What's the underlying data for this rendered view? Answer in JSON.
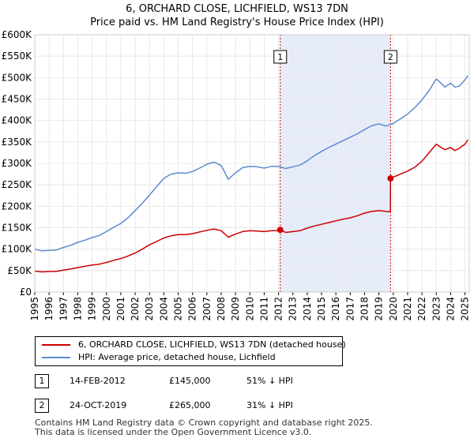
{
  "title_line1": "6, ORCHARD CLOSE, LICHFIELD, WS13 7DN",
  "title_line2": "Price paid vs. HM Land Registry's House Price Index (HPI)",
  "colors": {
    "property_line": "#cc0000",
    "hpi_line": "#5b8bd0",
    "shade": "#e6ecfa",
    "marker_line": "#cc0000",
    "grid": "#e8e8e8"
  },
  "chart_data": {
    "type": "line",
    "xlim": [
      1995,
      2025.3
    ],
    "ylim": [
      0,
      600000
    ],
    "x_ticks": [
      "1995",
      "1996",
      "1997",
      "1998",
      "1999",
      "2000",
      "2001",
      "2002",
      "2003",
      "2004",
      "2005",
      "2006",
      "2007",
      "2008",
      "2009",
      "2010",
      "2011",
      "2012",
      "2013",
      "2014",
      "2015",
      "2016",
      "2017",
      "2018",
      "2019",
      "2020",
      "2021",
      "2022",
      "2023",
      "2024",
      "2025"
    ],
    "y_ticks": [
      {
        "value": 0,
        "label": "£0"
      },
      {
        "value": 50000,
        "label": "£50K"
      },
      {
        "value": 100000,
        "label": "£100K"
      },
      {
        "value": 150000,
        "label": "£150K"
      },
      {
        "value": 200000,
        "label": "£200K"
      },
      {
        "value": 250000,
        "label": "£250K"
      },
      {
        "value": 300000,
        "label": "£300K"
      },
      {
        "value": 350000,
        "label": "£350K"
      },
      {
        "value": 400000,
        "label": "£400K"
      },
      {
        "value": 450000,
        "label": "£450K"
      },
      {
        "value": 500000,
        "label": "£500K"
      },
      {
        "value": 550000,
        "label": "£550K"
      },
      {
        "value": 600000,
        "label": "£600K"
      }
    ],
    "shaded_range": [
      2012.12,
      2019.81
    ],
    "markers": [
      {
        "label": "1",
        "x": 2012.12,
        "value": 145000
      },
      {
        "label": "2",
        "x": 2019.81,
        "value": 265000
      }
    ],
    "series": [
      {
        "name": "6, ORCHARD CLOSE, LICHFIELD, WS13 7DN (detached house)",
        "color": "#cc0000",
        "x": [
          1995.0,
          1995.5,
          1996.0,
          1996.5,
          1997.0,
          1997.5,
          1998.0,
          1998.5,
          1999.0,
          1999.5,
          2000.0,
          2000.5,
          2001.0,
          2001.5,
          2002.0,
          2002.5,
          2003.0,
          2003.5,
          2004.0,
          2004.5,
          2005.0,
          2005.5,
          2006.0,
          2006.5,
          2007.0,
          2007.5,
          2008.0,
          2008.5,
          2009.0,
          2009.5,
          2010.0,
          2010.5,
          2011.0,
          2011.5,
          2012.0,
          2012.12,
          2012.5,
          2013.0,
          2013.5,
          2014.0,
          2014.5,
          2015.0,
          2015.5,
          2016.0,
          2016.5,
          2017.0,
          2017.5,
          2018.0,
          2018.5,
          2019.0,
          2019.5,
          2019.8,
          2019.81,
          2020.0,
          2020.5,
          2021.0,
          2021.5,
          2022.0,
          2022.5,
          2023.0,
          2023.3,
          2023.6,
          2024.0,
          2024.3,
          2024.6,
          2025.0,
          2025.2
        ],
        "values": [
          49000,
          47000,
          48000,
          48000,
          51000,
          54000,
          57000,
          60000,
          63000,
          65000,
          69000,
          74000,
          78000,
          84000,
          91000,
          100000,
          110000,
          118000,
          126000,
          131000,
          134000,
          134000,
          136000,
          140000,
          144000,
          147000,
          143000,
          128000,
          135000,
          141000,
          143000,
          142000,
          141000,
          143000,
          143000,
          145000,
          139000,
          141000,
          143000,
          149000,
          154000,
          158000,
          162000,
          166000,
          170000,
          173000,
          178000,
          184000,
          188000,
          190000,
          188000,
          187000,
          265000,
          268000,
          275000,
          282000,
          291000,
          305000,
          325000,
          345000,
          338000,
          332000,
          337000,
          330000,
          335000,
          345000,
          355000
        ]
      },
      {
        "name": "HPI: Average price, detached house, Lichfield",
        "color": "#5b8bd0",
        "x": [
          1995.0,
          1995.5,
          1996.0,
          1996.5,
          1997.0,
          1997.5,
          1998.0,
          1998.5,
          1999.0,
          1999.5,
          2000.0,
          2000.5,
          2001.0,
          2001.5,
          2002.0,
          2002.5,
          2003.0,
          2003.5,
          2004.0,
          2004.5,
          2005.0,
          2005.5,
          2006.0,
          2006.5,
          2007.0,
          2007.5,
          2008.0,
          2008.5,
          2009.0,
          2009.5,
          2010.0,
          2010.5,
          2011.0,
          2011.5,
          2012.0,
          2012.5,
          2013.0,
          2013.5,
          2014.0,
          2014.5,
          2015.0,
          2015.5,
          2016.0,
          2016.5,
          2017.0,
          2017.5,
          2018.0,
          2018.5,
          2019.0,
          2019.5,
          2020.0,
          2020.5,
          2021.0,
          2021.5,
          2022.0,
          2022.5,
          2023.0,
          2023.3,
          2023.6,
          2024.0,
          2024.3,
          2024.6,
          2025.0,
          2025.2
        ],
        "values": [
          100000,
          96000,
          97000,
          98000,
          104000,
          109000,
          116000,
          121000,
          127000,
          132000,
          141000,
          151000,
          160000,
          173000,
          190000,
          207000,
          226000,
          246000,
          265000,
          275000,
          278000,
          277000,
          281000,
          289000,
          298000,
          303000,
          295000,
          263000,
          278000,
          290000,
          293000,
          292000,
          289000,
          293000,
          293000,
          288000,
          292000,
          296000,
          306000,
          318000,
          328000,
          337000,
          345000,
          353000,
          361000,
          369000,
          379000,
          388000,
          392000,
          387000,
          393000,
          404000,
          415000,
          430000,
          448000,
          470000,
          497000,
          488000,
          478000,
          487000,
          478000,
          480000,
          495000,
          505000
        ]
      }
    ]
  },
  "legend": {
    "items": [
      {
        "label": "6, ORCHARD CLOSE, LICHFIELD, WS13 7DN (detached house)",
        "color": "#cc0000"
      },
      {
        "label": "HPI: Average price, detached house, Lichfield",
        "color": "#5b8bd0"
      }
    ]
  },
  "sales": [
    {
      "badge": "1",
      "date": "14-FEB-2012",
      "price": "£145,000",
      "hpi": "51% ↓ HPI"
    },
    {
      "badge": "2",
      "date": "24-OCT-2019",
      "price": "£265,000",
      "hpi": "31% ↓ HPI"
    }
  ],
  "footer": {
    "line1": "Contains HM Land Registry data © Crown copyright and database right 2025.",
    "line2": "This data is licensed under the Open Government Licence v3.0."
  }
}
